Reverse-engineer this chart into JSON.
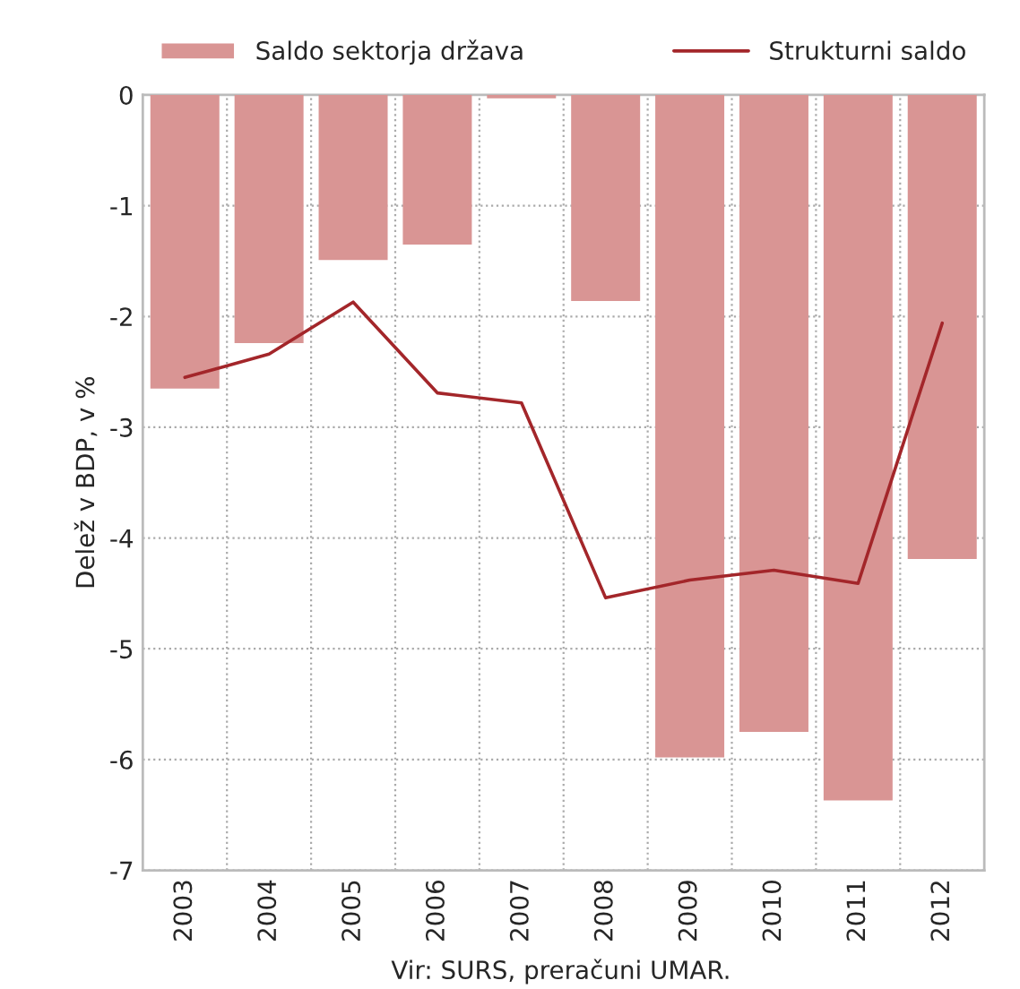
{
  "chart_data": {
    "type": "bar",
    "ylabel": "Delež v BDP, v %",
    "categories": [
      "2003",
      "2004",
      "2005",
      "2006",
      "2007",
      "2008",
      "2009",
      "2010",
      "2011",
      "2012"
    ],
    "series": [
      {
        "name": "Saldo sektorja država",
        "color": "#d99594",
        "values": [
          -2.65,
          -2.24,
          -1.49,
          -1.35,
          -0.03,
          -1.86,
          -5.98,
          -5.75,
          -6.37,
          -4.19
        ]
      },
      {
        "name": "Strukturni saldo",
        "type": "line",
        "color": "#a3262a",
        "values": [
          -2.55,
          -2.34,
          -1.87,
          -2.69,
          -2.78,
          -4.54,
          -4.38,
          -4.29,
          -4.41,
          -2.06
        ]
      }
    ],
    "ylim": [
      -7,
      0
    ],
    "yticks": [
      -7,
      -6,
      -5,
      -4,
      -3,
      -2,
      -1,
      0
    ],
    "grid": true,
    "legend": "top",
    "annotations": [
      "Vir: SURS, preračuni UMAR."
    ]
  }
}
